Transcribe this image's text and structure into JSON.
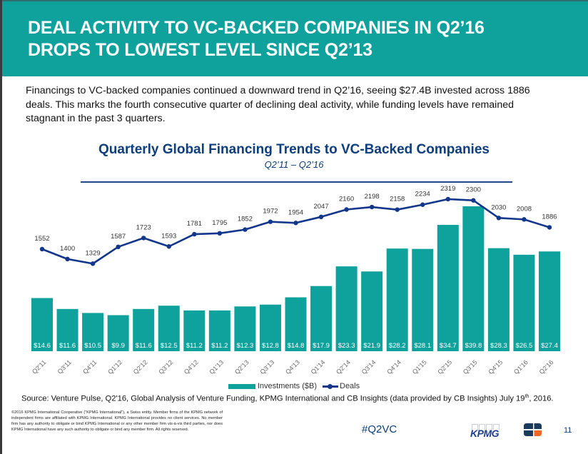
{
  "header": {
    "title_lines": [
      "DEAL ACTIVITY TO VC-BACKED COMPANIES IN Q2’16",
      "DROPS TO LOWEST LEVEL SINCE Q2’13"
    ]
  },
  "intro_text": "Financings to VC-backed companies continued a downward trend in Q2’16, seeing $27.4B invested across 1886 deals. This marks the fourth consecutive quarter of declining deal activity, while funding levels have remained stagnant in the past 3 quarters.",
  "chart_data": {
    "type": "bar+line",
    "title": "Quarterly Global Financing Trends to VC-Backed Companies",
    "subtitle": "Q2’11 – Q2’16",
    "categories": [
      "Q2'11",
      "Q3'11",
      "Q4'11",
      "Q1'12",
      "Q2'12",
      "Q3'12",
      "Q4'12",
      "Q1'13",
      "Q2'13",
      "Q3'13",
      "Q4'13",
      "Q1'14",
      "Q2'14",
      "Q3'14",
      "Q4'14",
      "Q1'15",
      "Q2'15",
      "Q3'15",
      "Q4'15",
      "Q1'16",
      "Q2'16"
    ],
    "series": [
      {
        "name": "Investments ($B)",
        "type": "bar",
        "color": "#0fa19c",
        "values": [
          14.6,
          11.6,
          10.5,
          9.9,
          11.6,
          12.5,
          11.2,
          11.2,
          12.3,
          12.8,
          14.8,
          17.9,
          23.3,
          21.9,
          28.2,
          28.1,
          34.7,
          39.8,
          28.3,
          26.5,
          27.4
        ],
        "label_prefix": "$"
      },
      {
        "name": "Deals",
        "type": "line",
        "color": "#12368a",
        "values": [
          1552,
          1400,
          1329,
          1587,
          1723,
          1593,
          1781,
          1795,
          1852,
          1972,
          1954,
          2047,
          2160,
          2198,
          2158,
          2234,
          2319,
          2300,
          2030,
          2008,
          1886
        ]
      }
    ],
    "xlabel": "",
    "ylabel": "",
    "grid": false,
    "legend": "bottom-center"
  },
  "legend": {
    "investments_label": "Investments ($B)",
    "deals_label": "Deals"
  },
  "source": {
    "text": "Source: Venture Pulse, Q2'16, Global Analysis of Venture Funding, KPMG International and CB Insights (data provided by CB Insights) July 19",
    "superscript": "th",
    "suffix": ", 2016."
  },
  "disclaimer": "©2016 KPMG International Cooperative (“KPMG International”), a Swiss entity. Member firms of the KPMG network of independent firms are affiliated with KPMG International. KPMG International provides no client services. No member firm has any authority to obligate or bind KPMG International or any other member firm vis-à-vis third parties, nor does KPMG International have any such authority to obligate or bind any member firm. All rights reserved.",
  "footer": {
    "hashtag": "#Q2VC",
    "kpmg_logo_text": "KPMG",
    "page_number": "11"
  },
  "colors": {
    "brand_teal": "#0fa19c",
    "navy": "#0e3e7b",
    "line_blue": "#12368a",
    "cb_orange": "#f26522",
    "cb_navy": "#1b3a5c"
  }
}
